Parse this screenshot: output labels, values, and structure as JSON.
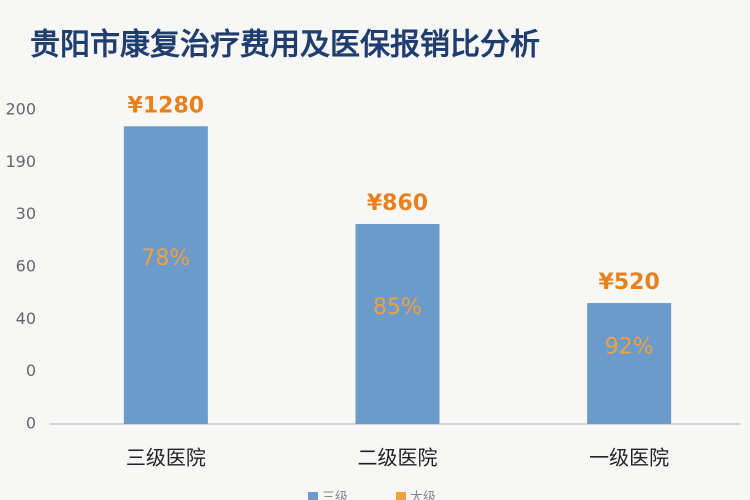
{
  "chart_data": {
    "type": "bar",
    "title": "贵阳市康复治疗费用及医保报销比分析",
    "categories": [
      "三级医院",
      "二级医院",
      "一级医院"
    ],
    "series": [
      {
        "name": "三级",
        "color": "#6b9bcb",
        "values": [
          1280,
          860,
          520
        ],
        "value_labels": [
          "¥1280",
          "¥860",
          "¥520"
        ]
      },
      {
        "name": "大级",
        "color": "#f0a03c",
        "values": [
          78,
          85,
          92
        ],
        "value_labels": [
          "78%",
          "85%",
          "92%"
        ]
      }
    ],
    "y_axis_labels": [
      200,
      190,
      30,
      60,
      40,
      0,
      0
    ],
    "ylim": [
      0,
      1350
    ]
  }
}
